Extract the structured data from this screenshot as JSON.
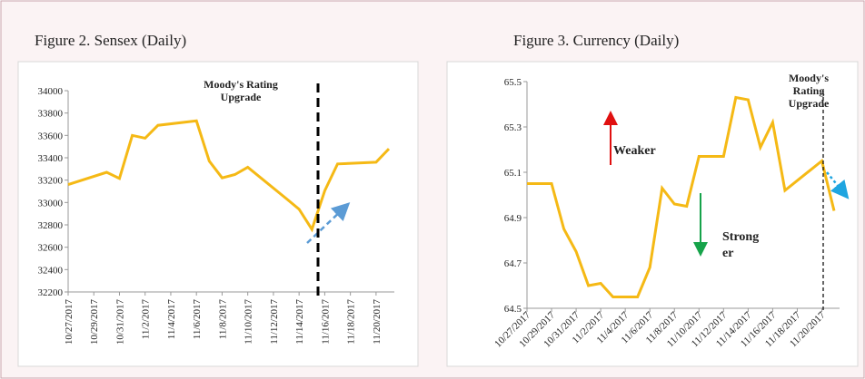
{
  "chart_data": [
    {
      "type": "line",
      "title": "Figure 2. Sensex (Daily)",
      "annotation": [
        "Moody's Rating",
        "Upgrade"
      ],
      "x": [
        "10/27/2017",
        "10/30/2017",
        "10/31/2017",
        "11/1/2017",
        "11/2/2017",
        "11/3/2017",
        "11/6/2017",
        "11/7/2017",
        "11/8/2017",
        "11/9/2017",
        "11/10/2017",
        "11/13/2017",
        "11/14/2017",
        "11/15/2017",
        "11/16/2017",
        "11/17/2017",
        "11/20/2017",
        "11/21/2017"
      ],
      "series": [
        {
          "color": "#f5b915",
          "values": [
            33160,
            33270,
            33215,
            33600,
            33575,
            33690,
            33730,
            33370,
            33220,
            33250,
            33315,
            33035,
            32940,
            32760,
            33105,
            33345,
            33360,
            33480
          ]
        }
      ],
      "xlim": [
        "10/27/2017",
        "11/21/2017"
      ],
      "xticks": [
        "10/27/2017",
        "10/29/2017",
        "10/31/2017",
        "11/2/2017",
        "11/4/2017",
        "11/6/2017",
        "11/8/2017",
        "11/10/2017",
        "11/12/2017",
        "11/14/2017",
        "11/16/2017",
        "11/18/2017",
        "11/20/2017"
      ],
      "ylim": [
        32200,
        34000
      ],
      "yticks": [
        32200,
        32400,
        32600,
        32800,
        33000,
        33200,
        33400,
        33600,
        33800,
        34000
      ]
    },
    {
      "type": "line",
      "title": "Figure 3. Currency (Daily)",
      "annotation": [
        "Moody's",
        "Rating",
        "Upgrade"
      ],
      "labels": {
        "weaker": [
          "Weaker"
        ],
        "stronger": [
          "Strong",
          "er"
        ]
      },
      "x": [
        "10/27/2017",
        "10/29/2017",
        "10/30/2017",
        "10/31/2017",
        "11/1/2017",
        "11/2/2017",
        "11/3/2017",
        "11/5/2017",
        "11/6/2017",
        "11/7/2017",
        "11/8/2017",
        "11/9/2017",
        "11/10/2017",
        "11/12/2017",
        "11/13/2017",
        "11/14/2017",
        "11/15/2017",
        "11/16/2017",
        "11/17/2017",
        "11/20/2017",
        "11/21/2017"
      ],
      "series": [
        {
          "color": "#f5b915",
          "values": [
            65.05,
            65.05,
            64.85,
            64.75,
            64.6,
            64.61,
            64.55,
            64.55,
            64.68,
            65.03,
            64.96,
            64.95,
            65.17,
            65.17,
            65.43,
            65.42,
            65.21,
            65.32,
            65.02,
            65.15,
            64.93
          ]
        }
      ],
      "xlim": [
        "10/27/2017",
        "11/21/2017"
      ],
      "xticks": [
        "10/27/2017",
        "10/29/2017",
        "10/31/2017",
        "11/2/2017",
        "11/4/2017",
        "11/6/2017",
        "11/8/2017",
        "11/10/2017",
        "11/12/2017",
        "11/14/2017",
        "11/16/2017",
        "11/18/2017",
        "11/20/2017"
      ],
      "ylim": [
        64.5,
        65.5
      ],
      "yticks": [
        64.5,
        64.7,
        64.9,
        65.1,
        65.3,
        65.5
      ]
    }
  ]
}
